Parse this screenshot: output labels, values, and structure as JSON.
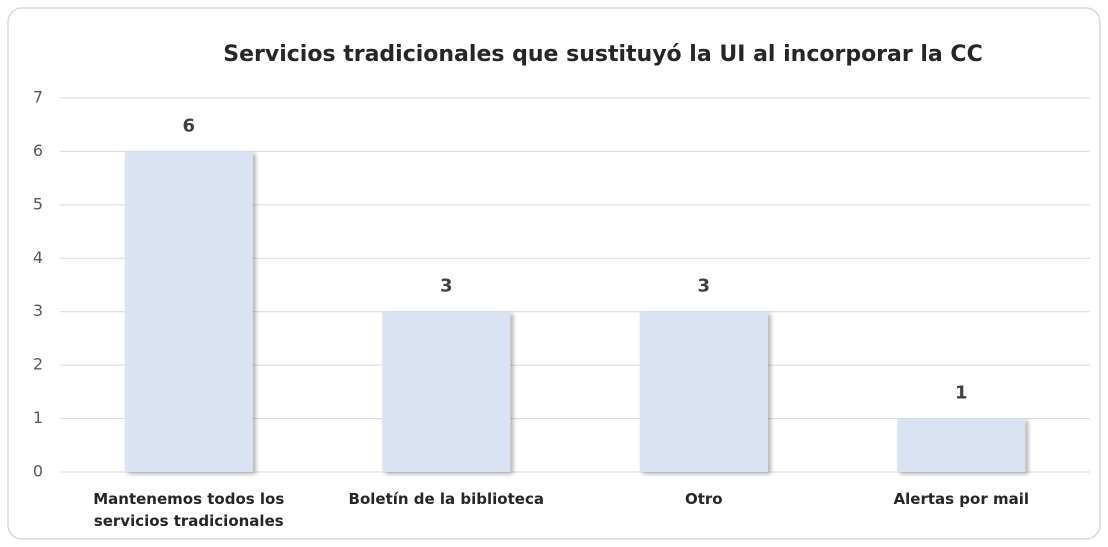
{
  "chart_data": {
    "type": "bar",
    "title": "Servicios tradicionales que sustituyó la UI al incorporar la CC",
    "categories": [
      "Mantenemos todos los servicios tradicionales",
      "Boletín de la biblioteca",
      "Otro",
      "Alertas por mail"
    ],
    "values": [
      6,
      3,
      3,
      1
    ],
    "color": "#dae3f3",
    "ylim": [
      0,
      7
    ],
    "yticks": [
      0,
      1,
      2,
      3,
      4,
      5,
      6,
      7
    ],
    "grid": true
  }
}
